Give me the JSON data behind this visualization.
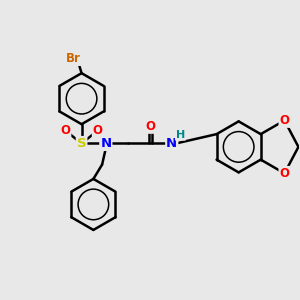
{
  "bg_color": "#e8e8e8",
  "bond_color": "#000000",
  "bond_width": 1.8,
  "atoms": {
    "Br": {
      "color": "#cc6600"
    },
    "S": {
      "color": "#cccc00"
    },
    "N": {
      "color": "#0000ff"
    },
    "O": {
      "color": "#ff0000"
    },
    "H": {
      "color": "#008888"
    },
    "C": {
      "color": "#000000"
    }
  },
  "figsize": [
    3.0,
    3.0
  ],
  "dpi": 100,
  "xlim": [
    -4.8,
    4.8
  ],
  "ylim": [
    -3.8,
    3.8
  ]
}
